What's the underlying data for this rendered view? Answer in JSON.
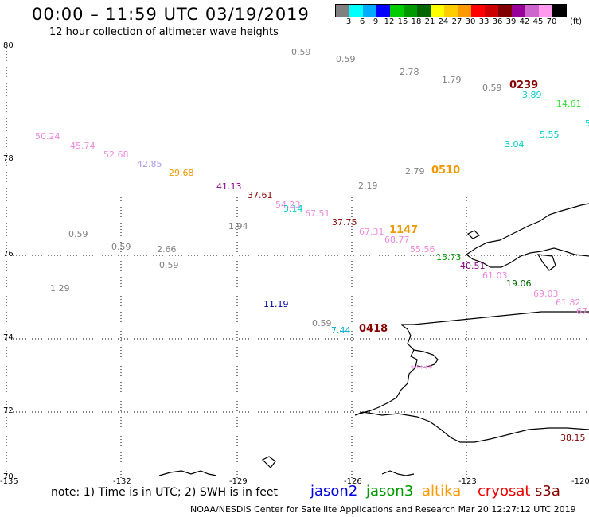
{
  "header": {
    "title": "00:00 – 11:59 UTC 03/19/2019",
    "subtitle": "12 hour collection of altimeter wave heights"
  },
  "color_scale": {
    "unit_label": "(ft)",
    "bins": [
      {
        "label": "3",
        "color": "#808080"
      },
      {
        "label": "6",
        "color": "#00ffff"
      },
      {
        "label": "9",
        "color": "#00aaff"
      },
      {
        "label": "12",
        "color": "#0000ff"
      },
      {
        "label": "15",
        "color": "#00cc00"
      },
      {
        "label": "18",
        "color": "#009900"
      },
      {
        "label": "21",
        "color": "#006600"
      },
      {
        "label": "24",
        "color": "#ffff00"
      },
      {
        "label": "27",
        "color": "#ffcc00"
      },
      {
        "label": "30",
        "color": "#ff9900"
      },
      {
        "label": "33",
        "color": "#ff0000"
      },
      {
        "label": "36",
        "color": "#cc0000"
      },
      {
        "label": "39",
        "color": "#800000"
      },
      {
        "label": "42",
        "color": "#990099"
      },
      {
        "label": "45",
        "color": "#cc66cc"
      },
      {
        "label": "70",
        "color": "#ff99ee"
      },
      {
        "label": "",
        "color": "#000000"
      }
    ]
  },
  "axes": {
    "lat_labels": [
      "80",
      "78",
      "76",
      "74",
      "72",
      "70"
    ],
    "lon_labels": [
      "-135",
      "-132",
      "-129",
      "-126",
      "-123",
      "-120"
    ]
  },
  "observations": [
    {
      "text": "0.59",
      "color": "#808080"
    },
    {
      "text": "0.59",
      "color": "#808080"
    },
    {
      "text": "2.78",
      "color": "#808080"
    },
    {
      "text": "1.79",
      "color": "#808080"
    },
    {
      "text": "0.59",
      "color": "#808080"
    },
    {
      "text": "3.89",
      "color": "#00cccc"
    },
    {
      "text": "14.61",
      "color": "#33dd33"
    },
    {
      "text": "5",
      "color": "#00cccc"
    },
    {
      "text": "5.55",
      "color": "#00cccc"
    },
    {
      "text": "3.04",
      "color": "#00cccc"
    },
    {
      "text": "50.24",
      "color": "#ee88dd"
    },
    {
      "text": "45.74",
      "color": "#ee88dd"
    },
    {
      "text": "52.68",
      "color": "#ee88dd"
    },
    {
      "text": "42.85",
      "color": "#aa99ee"
    },
    {
      "text": "29.68",
      "color": "#ee9900"
    },
    {
      "text": "2.79",
      "color": "#808080"
    },
    {
      "text": "41.13",
      "color": "#880088"
    },
    {
      "text": "37.61",
      "color": "#880000"
    },
    {
      "text": "2.19",
      "color": "#808080"
    },
    {
      "text": "54.23",
      "color": "#ee88dd"
    },
    {
      "text": "3.14",
      "color": "#00cccc"
    },
    {
      "text": "67.51",
      "color": "#ee88dd"
    },
    {
      "text": "37.75",
      "color": "#880000"
    },
    {
      "text": "1.94",
      "color": "#808080"
    },
    {
      "text": "0.59",
      "color": "#808080"
    },
    {
      "text": "67.31",
      "color": "#ee88dd"
    },
    {
      "text": "68.77",
      "color": "#ee88dd"
    },
    {
      "text": "55.56",
      "color": "#ee88dd"
    },
    {
      "text": "0.59",
      "color": "#808080"
    },
    {
      "text": "2.66",
      "color": "#808080"
    },
    {
      "text": "0.59",
      "color": "#808080"
    },
    {
      "text": "15.73",
      "color": "#009900"
    },
    {
      "text": "40.51",
      "color": "#880088"
    },
    {
      "text": "61.03",
      "color": "#ee88dd"
    },
    {
      "text": "19.06",
      "color": "#006600"
    },
    {
      "text": "1.29",
      "color": "#808080"
    },
    {
      "text": "69.03",
      "color": "#ee88dd"
    },
    {
      "text": "61.82",
      "color": "#ee88dd"
    },
    {
      "text": "67.",
      "color": "#ee88dd"
    },
    {
      "text": "11.19",
      "color": "#0000aa"
    },
    {
      "text": "0.59",
      "color": "#808080"
    },
    {
      "text": "7.44",
      "color": "#00aacc"
    },
    {
      "text": "38.15",
      "color": "#880000"
    },
    {
      "text": "*****",
      "color": "#ee88dd"
    }
  ],
  "pass_times": [
    {
      "text": "0239",
      "color": "#880000"
    },
    {
      "text": "0510",
      "color": "#ee9900"
    },
    {
      "text": "1147",
      "color": "#ee9900"
    },
    {
      "text": "0418",
      "color": "#880000"
    }
  ],
  "notes": {
    "note_text": "note: 1) Time is in UTC; 2) SWH is in feet",
    "satellites": [
      {
        "name": "jason2",
        "color": "#0000dd"
      },
      {
        "name": "jason3",
        "color": "#009900"
      },
      {
        "name": "altika",
        "color": "#ff9900"
      },
      {
        "name": "cryosat",
        "color": "#ee0000"
      },
      {
        "name": "s3a",
        "color": "#880000"
      }
    ],
    "credit": "NOAA/NESDIS Center for Satellite Applications and Research    Mar 20 12:27:12 UTC 2019"
  }
}
